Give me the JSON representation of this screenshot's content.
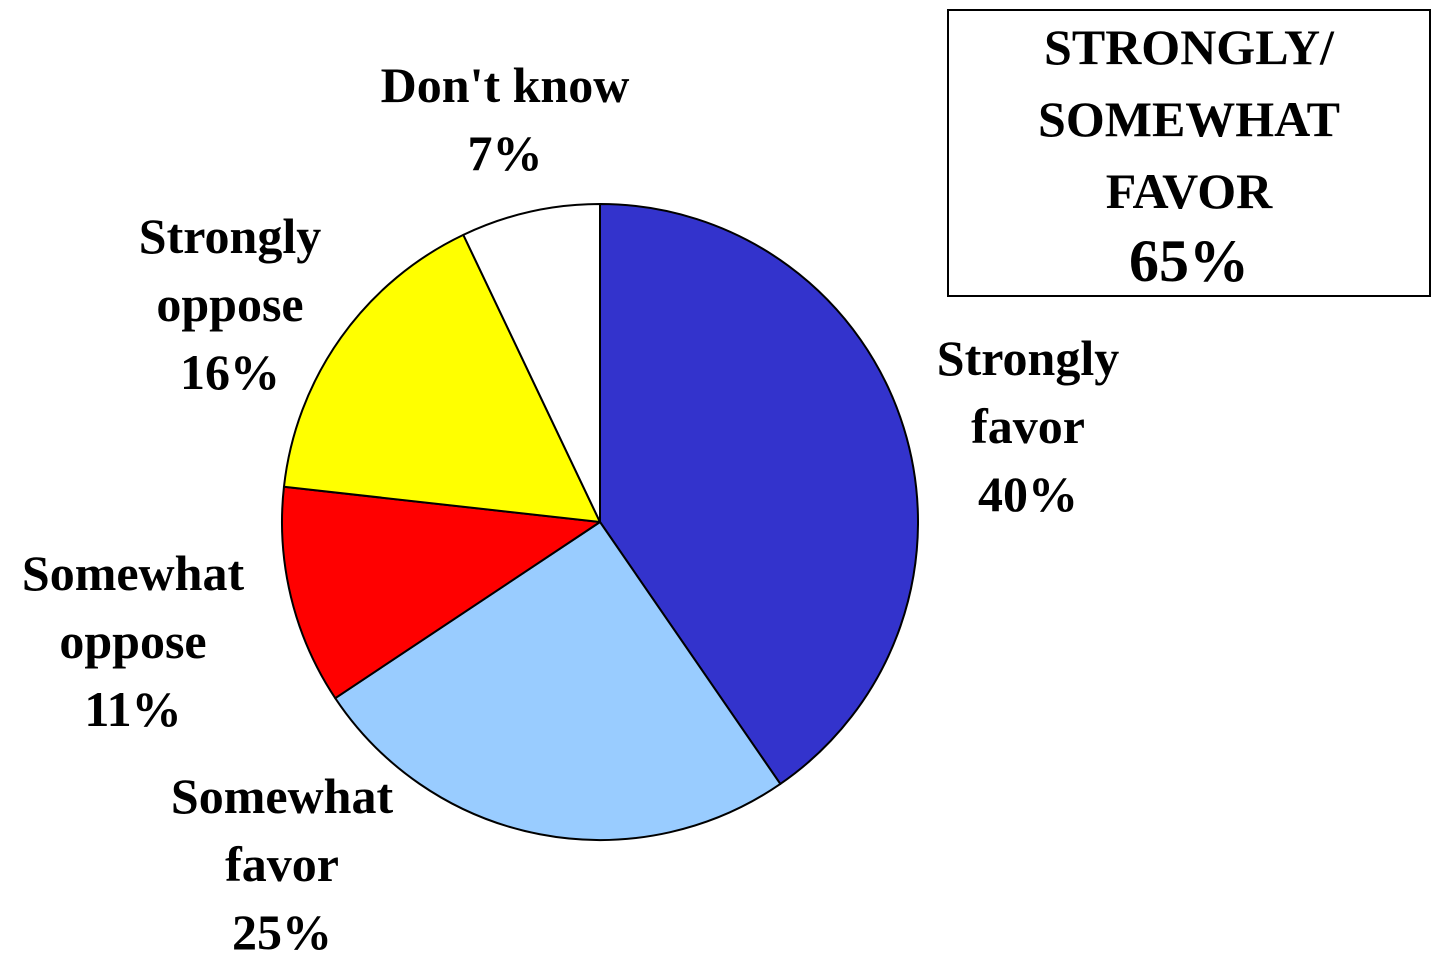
{
  "chart_data": {
    "type": "pie",
    "slices": [
      {
        "label_lines": [
          "Strongly",
          "favor"
        ],
        "value": 40,
        "value_label": "40%",
        "color": "#3333CC"
      },
      {
        "label_lines": [
          "Somewhat",
          "favor"
        ],
        "value": 25,
        "value_label": "25%",
        "color": "#99CCFF"
      },
      {
        "label_lines": [
          "Somewhat",
          "oppose"
        ],
        "value": 11,
        "value_label": "11%",
        "color": "#FF0000"
      },
      {
        "label_lines": [
          "Strongly",
          "oppose"
        ],
        "value": 16,
        "value_label": "16%",
        "color": "#FFFF00"
      },
      {
        "label_lines": [
          "Don't know"
        ],
        "value": 7,
        "value_label": "7%",
        "color": "#FFFFFF"
      }
    ]
  },
  "summary": {
    "line1": "STRONGLY/",
    "line2": "SOMEWHAT",
    "line3": "FAVOR",
    "value": "65%"
  }
}
